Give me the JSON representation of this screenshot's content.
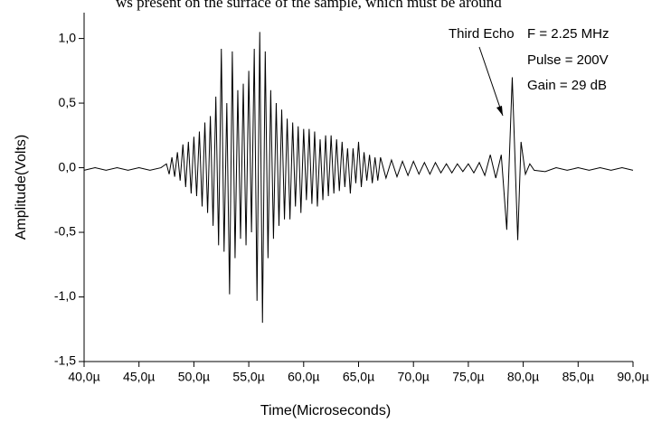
{
  "text_above": "ws present on the surface of the sample, which must be around",
  "chart_data": {
    "type": "line",
    "x_label": "Time(Microseconds)",
    "y_label": "Amplitude(Volts)",
    "annotations": [
      "Third Echo",
      "F = 2.25 MHz",
      "Pulse = 200V",
      "Gain = 29 dB"
    ],
    "color": "#000000",
    "xlim": [
      40,
      90
    ],
    "ylim": [
      -1.5,
      1.2
    ],
    "xticks": [
      {
        "value": 40,
        "label": "40,0µ"
      },
      {
        "value": 45,
        "label": "45,0µ"
      },
      {
        "value": 50,
        "label": "50,0µ"
      },
      {
        "value": 55,
        "label": "55,0µ"
      },
      {
        "value": 60,
        "label": "60,0µ"
      },
      {
        "value": 65,
        "label": "65,0µ"
      },
      {
        "value": 70,
        "label": "70,0µ"
      },
      {
        "value": 75,
        "label": "75,0µ"
      },
      {
        "value": 80,
        "label": "80,0µ"
      },
      {
        "value": 85,
        "label": "85,0µ"
      },
      {
        "value": 90,
        "label": "90,0µ"
      }
    ],
    "yticks": [
      {
        "value": -1.5,
        "label": "-1,5"
      },
      {
        "value": -1,
        "label": "-1,0"
      },
      {
        "value": -0.5,
        "label": "-0,5"
      },
      {
        "value": 0,
        "label": "0,0"
      },
      {
        "value": 0.5,
        "label": "0,5"
      },
      {
        "value": 1,
        "label": "1,0"
      }
    ],
    "x": [
      40,
      41,
      42,
      43,
      44,
      45,
      46,
      47,
      47.5,
      47.75,
      48,
      48.25,
      48.5,
      48.75,
      49,
      49.25,
      49.5,
      49.75,
      50,
      50.25,
      50.5,
      50.75,
      51,
      51.25,
      51.5,
      51.75,
      52,
      52.25,
      52.5,
      52.75,
      53,
      53.25,
      53.5,
      53.75,
      54,
      54.25,
      54.5,
      54.75,
      55,
      55.25,
      55.5,
      55.75,
      56,
      56.25,
      56.5,
      56.75,
      57,
      57.25,
      57.5,
      57.75,
      58,
      58.25,
      58.5,
      58.75,
      59,
      59.25,
      59.5,
      59.75,
      60,
      60.25,
      60.5,
      60.75,
      61,
      61.25,
      61.5,
      61.75,
      62,
      62.25,
      62.5,
      62.75,
      63,
      63.25,
      63.5,
      63.75,
      64,
      64.25,
      64.5,
      64.75,
      65,
      65.25,
      65.5,
      65.75,
      66,
      66.25,
      66.5,
      66.75,
      67,
      67.5,
      68,
      68.5,
      69,
      69.5,
      70,
      70.5,
      71,
      71.5,
      72,
      72.5,
      73,
      73.5,
      74,
      74.5,
      75,
      75.5,
      76,
      76.5,
      77,
      77.5,
      78,
      78.5,
      79,
      79.5,
      79.8,
      80.2,
      80.6,
      81,
      82,
      83,
      84,
      85,
      86,
      87,
      88,
      89,
      90
    ],
    "values": [
      -0.02,
      0,
      -0.02,
      0,
      -0.02,
      0,
      -0.02,
      0,
      0.03,
      -0.05,
      0.08,
      -0.07,
      0.12,
      -0.1,
      0.18,
      -0.15,
      0.2,
      -0.2,
      0.24,
      -0.22,
      0.28,
      -0.3,
      0.35,
      -0.35,
      0.4,
      -0.45,
      0.55,
      -0.6,
      0.92,
      -0.65,
      0.5,
      -0.98,
      0.9,
      -0.7,
      0.6,
      -0.55,
      0.65,
      -0.6,
      0.75,
      -0.5,
      0.92,
      -1.03,
      1.05,
      -1.2,
      0.9,
      -0.7,
      0.6,
      -0.55,
      0.5,
      -0.45,
      0.45,
      -0.4,
      0.38,
      -0.4,
      0.35,
      -0.3,
      0.32,
      -0.35,
      0.3,
      -0.25,
      0.3,
      -0.28,
      0.28,
      -0.3,
      0.22,
      -0.25,
      0.25,
      -0.22,
      0.25,
      -0.2,
      0.22,
      -0.18,
      0.2,
      -0.15,
      0.15,
      -0.2,
      0.15,
      -0.12,
      0.2,
      -0.15,
      0.12,
      -0.1,
      0.1,
      -0.12,
      0.08,
      -0.1,
      0.08,
      -0.08,
      0.06,
      -0.07,
      0.05,
      -0.06,
      0.05,
      -0.05,
      0.04,
      -0.05,
      0.04,
      -0.04,
      0.03,
      -0.04,
      0.03,
      -0.03,
      0.03,
      -0.04,
      0.04,
      -0.06,
      0.1,
      -0.08,
      0.1,
      -0.48,
      0.7,
      -0.56,
      0.2,
      -0.05,
      0.03,
      -0.02,
      -0.03,
      0,
      -0.02,
      0,
      -0.02,
      0,
      -0.02,
      0,
      -0.02
    ]
  }
}
